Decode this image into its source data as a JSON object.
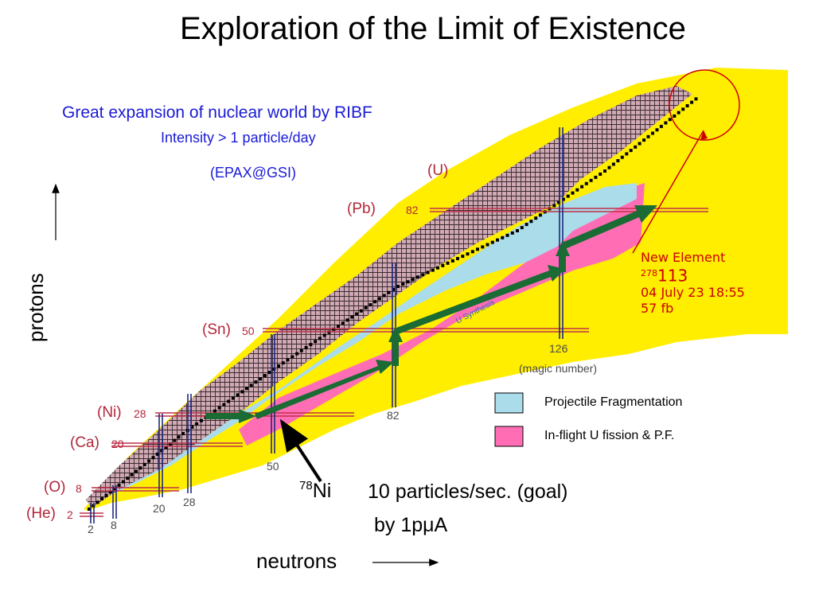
{
  "title": "Exploration of the Limit of Existence",
  "subtitle": "Great expansion of nuclear world by RIBF",
  "intensity": "Intensity > 1 particle/day",
  "epax": "(EPAX@GSI)",
  "axis": {
    "y": "protons",
    "x": "neutrons"
  },
  "elements": [
    {
      "name": "(U)",
      "magic": ""
    },
    {
      "name": "(Pb)",
      "magic": "82"
    },
    {
      "name": "(Sn)",
      "magic": "50"
    },
    {
      "name": "(Ni)",
      "magic": "28"
    },
    {
      "name": "(Ca)",
      "magic": "20"
    },
    {
      "name": "(O)",
      "magic": "8"
    },
    {
      "name": "(He)",
      "magic": "2"
    }
  ],
  "neutron_magic": [
    "2",
    "8",
    "20",
    "28",
    "50",
    "82",
    "126"
  ],
  "magic_note": "(magic number)",
  "synthesis_label": "U Synthesis",
  "legend": [
    {
      "label": "Projectile Fragmentation",
      "color": "#aadcea"
    },
    {
      "label": "In-flight U fission & P.F.",
      "color": "#ff6eb4"
    }
  ],
  "ni78": {
    "mass": "78",
    "symbol": "Ni"
  },
  "rate": "10 particles/sec. (goal)",
  "beam": "by 1pμA",
  "new_element": {
    "heading": "New Element",
    "mass": "278",
    "number": "113",
    "date": "04 July 23 18:55",
    "xsec": "57 fb"
  },
  "colors": {
    "title_blue": "#1a1ad6",
    "label_red": "#b2273a",
    "unknown_yellow": "#ffee00",
    "fragmentation_blue": "#aadcea",
    "fission_pink": "#ff6eb4",
    "known_mauve": "#cfa9b3",
    "arrow_green": "#1a6b34",
    "note_red": "#cc0000"
  }
}
